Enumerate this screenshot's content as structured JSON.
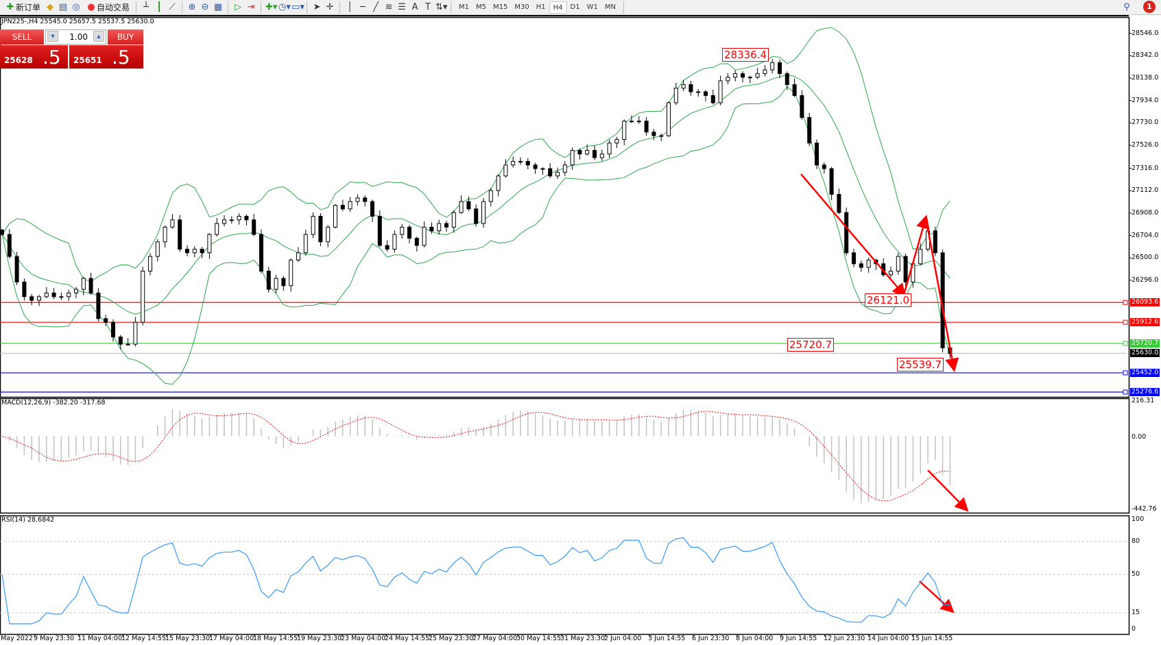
{
  "toolbar": {
    "new_order": "新订单",
    "auto_trading": "自动交易",
    "icons": [
      "new-order-icon",
      "market-watch-icon",
      "data-window-icon",
      "navigator-icon",
      "auto-trading-icon",
      "bar-chart-icon",
      "candlestick-icon",
      "line-chart-icon",
      "zoom-in-icon",
      "zoom-out-icon",
      "tile-windows-icon",
      "autoscroll-icon",
      "chart-shift-icon",
      "indicators-icon",
      "periods-icon",
      "templates-icon",
      "cursor-icon",
      "crosshair-icon",
      "vertical-line-icon",
      "horizontal-line-icon",
      "trendline-icon",
      "fibo-channel-icon",
      "fibo-retracement-icon",
      "text-icon",
      "text-label-icon",
      "arrows-icon"
    ],
    "text_tool": "A",
    "label_tool": "T",
    "timeframes": [
      "M1",
      "M5",
      "M15",
      "M30",
      "H1",
      "H4",
      "D1",
      "W1",
      "MN"
    ],
    "active_timeframe": "H4",
    "notification_count": "1"
  },
  "chart": {
    "info": "JPN225-,H4  25545.0 25657.5 25537.5 25630.0",
    "trade_panel": {
      "sell": "SELL",
      "buy": "BUY",
      "lot": "1.00",
      "sell_main": "25628",
      "sell_frac": ".5",
      "buy_main": "25651",
      "buy_frac": ".5"
    },
    "price_axis": [
      "28546.0",
      "28342.0",
      "28138.0",
      "27934.0",
      "27730.0",
      "27526.0",
      "27316.0",
      "27112.0",
      "26908.0",
      "26704.0",
      "26500.0",
      "26296.0"
    ],
    "lines": [
      {
        "value": 26093.6,
        "label": "26093.6",
        "color": "#ff0000"
      },
      {
        "value": 25912.6,
        "label": "25912.6",
        "color": "#ff0000"
      },
      {
        "value": 25720.7,
        "label": "25720.7",
        "color": "#33cc33"
      },
      {
        "value": 25630.0,
        "label": "25630.0",
        "color": "#000000"
      },
      {
        "value": 25452.0,
        "label": "25452.0",
        "color": "#0000ff"
      },
      {
        "value": 25276.6,
        "label": "25276.6",
        "color": "#0000ff"
      }
    ],
    "annotations": [
      "28336.4",
      "26121.0",
      "25720.7",
      "25539.7"
    ],
    "time_axis": [
      "8 May 2022",
      "9 May 23:30",
      "11 May 04:00",
      "12 May 14:55",
      "15 May 23:30",
      "17 May 04:00",
      "18 May 14:55",
      "19 May 23:30",
      "23 May 04:00",
      "24 May 14:55",
      "25 May 23:30",
      "27 May 04:00",
      "30 May 14:55",
      "31 May 23:30",
      "2 Jun 04:00",
      "3 Jun 14:55",
      "6 Jun 23:30",
      "8 Jun 04:00",
      "9 Jun 14:55",
      "12 Jun 23:30",
      "14 Jun 04:00",
      "15 Jun 14:55"
    ],
    "macd": {
      "label": "MACD(12,26,9) -382.20 -317.68",
      "axis": [
        "216.31",
        "0.00",
        "-442.76"
      ]
    },
    "rsi": {
      "label": "RSI(14) 28.6842",
      "axis": [
        "100",
        "80",
        "50",
        "15",
        "0"
      ]
    },
    "colors": {
      "bands": "#2ca84a",
      "macd_hist": "#c0c0c0",
      "macd_signal": "#ff0000",
      "rsi": "#3399ff",
      "arrows": "#ff0000"
    }
  },
  "chart_data": {
    "type": "candlestick",
    "symbol": "JPN225-",
    "timeframe": "H4",
    "ylim": [
      25276.6,
      28546.0
    ],
    "closes": [
      26713,
      26513,
      26280,
      26146,
      26113,
      26146,
      26180,
      26146,
      26146,
      26180,
      26213,
      26313,
      26180,
      25946,
      25913,
      25779,
      25713,
      25713,
      25913,
      26379,
      26513,
      26646,
      26780,
      26846,
      26579,
      26546,
      26579,
      26546,
      26713,
      26813,
      26846,
      26846,
      26879,
      26846,
      26713,
      26379,
      26213,
      26313,
      26246,
      26480,
      26546,
      26713,
      26879,
      26646,
      26780,
      26979,
      26946,
      27013,
      27046,
      27013,
      26879,
      26613,
      26579,
      26713,
      26780,
      26679,
      26613,
      26780,
      26746,
      26813,
      26780,
      26913,
      27013,
      26946,
      26813,
      27013,
      27113,
      27246,
      27346,
      27379,
      27379,
      27346,
      27313,
      27313,
      27246,
      27280,
      27346,
      27479,
      27446,
      27479,
      27413,
      27446,
      27546,
      27579,
      27746,
      27746,
      27746,
      27646,
      27613,
      27613,
      27913,
      28046,
      28079,
      28013,
      28013,
      27979,
      27913,
      28113,
      28146,
      28179,
      28146,
      28146,
      28179,
      28213,
      28279,
      28179,
      28079,
      27979,
      27779,
      27546,
      27346,
      27313,
      27079,
      26913,
      26546,
      26446,
      26413,
      26480,
      26446,
      26346,
      26379,
      26513,
      26280,
      26446,
      26579,
      26746,
      26546,
      25679,
      25630
    ],
    "indicators": [
      "Bollinger Bands",
      "MACD(12,26,9)",
      "RSI(14)"
    ]
  }
}
